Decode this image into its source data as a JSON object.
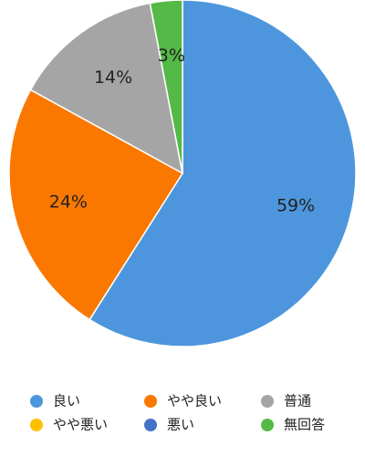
{
  "chart_data": {
    "type": "pie",
    "categories": [
      "良い",
      "やや良い",
      "普通",
      "やや悪い",
      "悪い",
      "無回答"
    ],
    "values": [
      59,
      24,
      14,
      0,
      0,
      3
    ],
    "value_labels": [
      "59%",
      "24%",
      "14%",
      null,
      null,
      "3%"
    ],
    "colors": [
      "#4d96dd",
      "#fa7800",
      "#a5a5a5",
      "#ffc000",
      "#4472c4",
      "#54b947"
    ],
    "legend": "bottom"
  }
}
